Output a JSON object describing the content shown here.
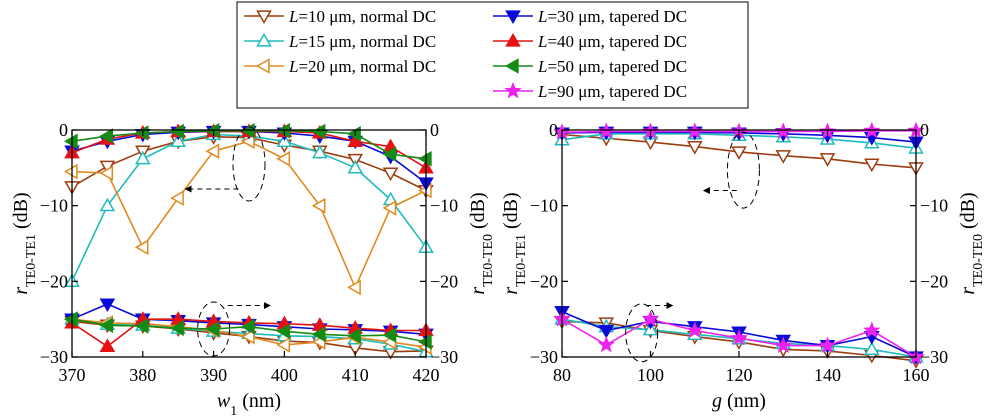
{
  "chart_data": [
    {
      "type": "line",
      "panel": "left",
      "xlabel_main": "w",
      "xlabel_sub": "1",
      "xlabel_unit": " (nm)",
      "ylabel_left_main": "r",
      "ylabel_left_sub": "TE0-TE1",
      "ylabel_left_unit": " (dB)",
      "ylabel_right_main": "r",
      "ylabel_right_sub": "TE0-TE0",
      "ylabel_right_unit": " (dB)",
      "xlim": [
        370,
        420
      ],
      "ylim": [
        -30,
        0
      ],
      "xticks": [
        370,
        380,
        390,
        400,
        410,
        420
      ],
      "yticks_left": [
        0,
        -10,
        -20,
        -30
      ],
      "yticks_right": [
        0,
        -10,
        -20,
        -30
      ],
      "grid": false,
      "series": [
        {
          "name": "L=10 μm, normal DC",
          "color": "#9c3d0f",
          "marker": "tri-down-open",
          "x": [
            370,
            375,
            380,
            385,
            390,
            395,
            400,
            405,
            410,
            415,
            420
          ],
          "y": [
            -7.5,
            -4.8,
            -2.8,
            -1.5,
            -0.9,
            -1.0,
            -2.0,
            -2.8,
            -3.9,
            -5.7,
            -8.0
          ]
        },
        {
          "name": "L=15 μm, normal DC",
          "color": "#1ebcbc",
          "marker": "tri-up-open",
          "x": [
            370,
            375,
            380,
            385,
            390,
            395,
            400,
            405,
            410,
            415,
            420
          ],
          "y": [
            -20.0,
            -10.0,
            -3.8,
            -1.5,
            -0.6,
            -0.8,
            -1.5,
            -3.0,
            -5.0,
            -9.2,
            -15.5
          ]
        },
        {
          "name": "L=20 μm, normal DC",
          "color": "#e08a1e",
          "marker": "tri-left-open",
          "x": [
            370,
            375,
            380,
            385,
            390,
            395,
            400,
            405,
            410,
            415,
            420
          ],
          "y": [
            -5.5,
            -5.7,
            -15.5,
            -9.0,
            -2.8,
            -1.5,
            -3.8,
            -10.0,
            -20.8,
            -10.3,
            -8.0
          ]
        },
        {
          "name": "L=30 μm, tapered DC",
          "color": "#0a0ad8",
          "marker": "tri-down-filled",
          "x": [
            370,
            375,
            380,
            385,
            390,
            395,
            400,
            405,
            410,
            415,
            420
          ],
          "y": [
            -2.8,
            -1.5,
            -0.6,
            -0.3,
            -0.2,
            -0.2,
            -0.4,
            -0.8,
            -1.5,
            -3.5,
            -7.0
          ]
        },
        {
          "name": "L=40 μm, tapered DC",
          "color": "#e61212",
          "marker": "tri-up-filled",
          "x": [
            370,
            375,
            380,
            385,
            390,
            395,
            400,
            405,
            410,
            415,
            420
          ],
          "y": [
            -3.0,
            -1.2,
            -0.4,
            -0.2,
            -0.2,
            -0.2,
            -0.2,
            -0.4,
            -1.5,
            -2.2,
            -5.0
          ]
        },
        {
          "name": "L=50 μm, tapered DC",
          "color": "#148c14",
          "marker": "tri-left-filled",
          "x": [
            370,
            375,
            380,
            385,
            390,
            395,
            400,
            405,
            410,
            415,
            420
          ],
          "y": [
            -1.5,
            -0.8,
            -0.4,
            -0.2,
            -0.1,
            -0.1,
            -0.1,
            -0.2,
            -0.5,
            -3.2,
            -3.8
          ]
        },
        {
          "name": "L=10 μm, normal DC",
          "color": "#9c3d0f",
          "marker": "tri-down-open",
          "x": [
            370,
            375,
            380,
            385,
            390,
            395,
            400,
            405,
            410,
            415,
            420
          ],
          "y": [
            -25.3,
            -25.8,
            -25.9,
            -26.3,
            -26.8,
            -27.3,
            -27.9,
            -28.1,
            -28.8,
            -29.3,
            -29.2
          ]
        },
        {
          "name": "L=15 μm, normal DC",
          "color": "#1ebcbc",
          "marker": "tri-up-open",
          "x": [
            370,
            375,
            380,
            385,
            390,
            395,
            400,
            405,
            410,
            415,
            420
          ],
          "y": [
            -25.0,
            -25.7,
            -25.8,
            -26.2,
            -26.6,
            -26.9,
            -27.2,
            -27.3,
            -27.6,
            -28.3,
            -29.3
          ]
        },
        {
          "name": "L=20 μm, normal DC",
          "color": "#e08a1e",
          "marker": "tri-left-open",
          "x": [
            370,
            375,
            380,
            385,
            390,
            395,
            400,
            405,
            410,
            415,
            420
          ],
          "y": [
            -25.0,
            -25.5,
            -25.6,
            -26.0,
            -26.5,
            -27.3,
            -28.4,
            -28.0,
            -27.4,
            -28.0,
            -28.7
          ]
        },
        {
          "name": "L=30 μm, tapered DC",
          "color": "#0a0ad8",
          "marker": "tri-down-filled",
          "x": [
            370,
            375,
            380,
            385,
            390,
            395,
            400,
            405,
            410,
            415,
            420
          ],
          "y": [
            -25.0,
            -23.0,
            -25.0,
            -25.2,
            -25.5,
            -25.7,
            -26.0,
            -26.3,
            -26.4,
            -26.6,
            -27.0
          ]
        },
        {
          "name": "L=40 μm, tapered DC",
          "color": "#e61212",
          "marker": "tri-up-filled",
          "x": [
            370,
            375,
            380,
            385,
            390,
            395,
            400,
            405,
            410,
            415,
            420
          ],
          "y": [
            -25.5,
            -28.6,
            -25.0,
            -25.0,
            -25.3,
            -25.5,
            -25.6,
            -25.8,
            -26.2,
            -26.5,
            -26.5
          ]
        },
        {
          "name": "L=50 μm, tapered DC",
          "color": "#148c14",
          "marker": "tri-left-filled",
          "x": [
            370,
            375,
            380,
            385,
            390,
            395,
            400,
            405,
            410,
            415,
            420
          ],
          "y": [
            -25.0,
            -25.8,
            -25.9,
            -26.2,
            -26.3,
            -26.0,
            -26.6,
            -27.0,
            -27.2,
            -27.1,
            -28.0
          ]
        }
      ]
    },
    {
      "type": "line",
      "panel": "right",
      "xlabel_main": "g",
      "xlabel_sub": "",
      "xlabel_unit": " (nm)",
      "ylabel_left_main": "r",
      "ylabel_left_sub": "TE0-TE1",
      "ylabel_left_unit": " (dB)",
      "ylabel_right_main": "r",
      "ylabel_right_sub": "TE0-TE0",
      "ylabel_right_unit": " (dB)",
      "xlim": [
        80,
        160
      ],
      "ylim": [
        -30,
        0
      ],
      "xticks": [
        80,
        100,
        120,
        140,
        160
      ],
      "yticks_left": [
        0,
        -10,
        -20,
        -30
      ],
      "yticks_right": [
        0,
        -10,
        -20,
        -30
      ],
      "grid": false,
      "series": [
        {
          "name": "L=10 μm, normal DC",
          "color": "#9c3d0f",
          "marker": "tri-down-open",
          "x": [
            80,
            90,
            100,
            110,
            120,
            130,
            140,
            150,
            160
          ],
          "y": [
            -0.6,
            -1.1,
            -1.6,
            -2.2,
            -2.9,
            -3.4,
            -3.8,
            -4.5,
            -5.0
          ]
        },
        {
          "name": "L=15 μm, normal DC",
          "color": "#1ebcbc",
          "marker": "tri-up-open",
          "x": [
            80,
            90,
            100,
            110,
            120,
            130,
            140,
            150,
            160
          ],
          "y": [
            -1.3,
            -0.5,
            -0.5,
            -0.5,
            -0.7,
            -0.9,
            -1.2,
            -1.7,
            -2.4
          ]
        },
        {
          "name": "L=30 μm, tapered DC",
          "color": "#0a0ad8",
          "marker": "tri-down-filled",
          "x": [
            80,
            90,
            100,
            110,
            120,
            130,
            140,
            150,
            160
          ],
          "y": [
            -0.4,
            -0.3,
            -0.3,
            -0.3,
            -0.4,
            -0.5,
            -0.7,
            -1.0,
            -1.6
          ]
        },
        {
          "name": "L=90 μm, tapered DC",
          "color": "#ee22ee",
          "marker": "star",
          "x": [
            80,
            90,
            100,
            110,
            120,
            130,
            140,
            150,
            160
          ],
          "y": [
            -0.3,
            -0.2,
            -0.2,
            -0.2,
            -0.2,
            -0.2,
            -0.2,
            -0.1,
            -0.1
          ]
        },
        {
          "name": "L=10 μm, normal DC",
          "color": "#9c3d0f",
          "marker": "tri-down-open",
          "x": [
            80,
            90,
            100,
            110,
            120,
            130,
            140,
            150,
            160
          ],
          "y": [
            -25.3,
            -25.5,
            -26.5,
            -27.3,
            -28.0,
            -29.0,
            -29.2,
            -29.8,
            -30.5
          ]
        },
        {
          "name": "L=15 μm, normal DC",
          "color": "#1ebcbc",
          "marker": "tri-up-open",
          "x": [
            80,
            90,
            100,
            110,
            120,
            130,
            140,
            150,
            160
          ],
          "y": [
            -25.0,
            -26.0,
            -26.4,
            -27.0,
            -27.6,
            -28.2,
            -28.5,
            -29.0,
            -30.0
          ]
        },
        {
          "name": "L=30 μm, tapered DC",
          "color": "#0a0ad8",
          "marker": "tri-down-filled",
          "x": [
            80,
            90,
            100,
            110,
            120,
            130,
            140,
            150,
            160
          ],
          "y": [
            -24.0,
            -26.5,
            -25.3,
            -26.0,
            -26.7,
            -27.8,
            -28.5,
            -27.3,
            -30.0
          ]
        },
        {
          "name": "L=90 μm, tapered DC",
          "color": "#ee22ee",
          "marker": "star",
          "x": [
            80,
            90,
            100,
            110,
            120,
            130,
            140,
            150,
            160
          ],
          "y": [
            -25.0,
            -28.4,
            -25.0,
            -26.5,
            -27.5,
            -28.5,
            -28.5,
            -26.5,
            -30.0
          ]
        }
      ]
    }
  ],
  "legend": {
    "placement": "top-center",
    "items": [
      {
        "main": "L",
        "rest": "=10 μm, normal DC",
        "color": "#9c3d0f",
        "marker": "tri-down-open"
      },
      {
        "main": "L",
        "rest": "=15 μm, normal DC",
        "color": "#1ebcbc",
        "marker": "tri-up-open"
      },
      {
        "main": "L",
        "rest": "=20 μm, normal DC",
        "color": "#e08a1e",
        "marker": "tri-left-open"
      },
      {
        "main": "L",
        "rest": "=30 μm, tapered DC",
        "color": "#0a0ad8",
        "marker": "tri-down-filled"
      },
      {
        "main": "L",
        "rest": "=40 μm, tapered DC",
        "color": "#e61212",
        "marker": "tri-up-filled"
      },
      {
        "main": "L",
        "rest": "=50 μm, tapered DC",
        "color": "#148c14",
        "marker": "tri-left-filled"
      },
      {
        "main": "L",
        "rest": "=90 μm, tapered DC",
        "color": "#ee22ee",
        "marker": "star"
      }
    ]
  }
}
